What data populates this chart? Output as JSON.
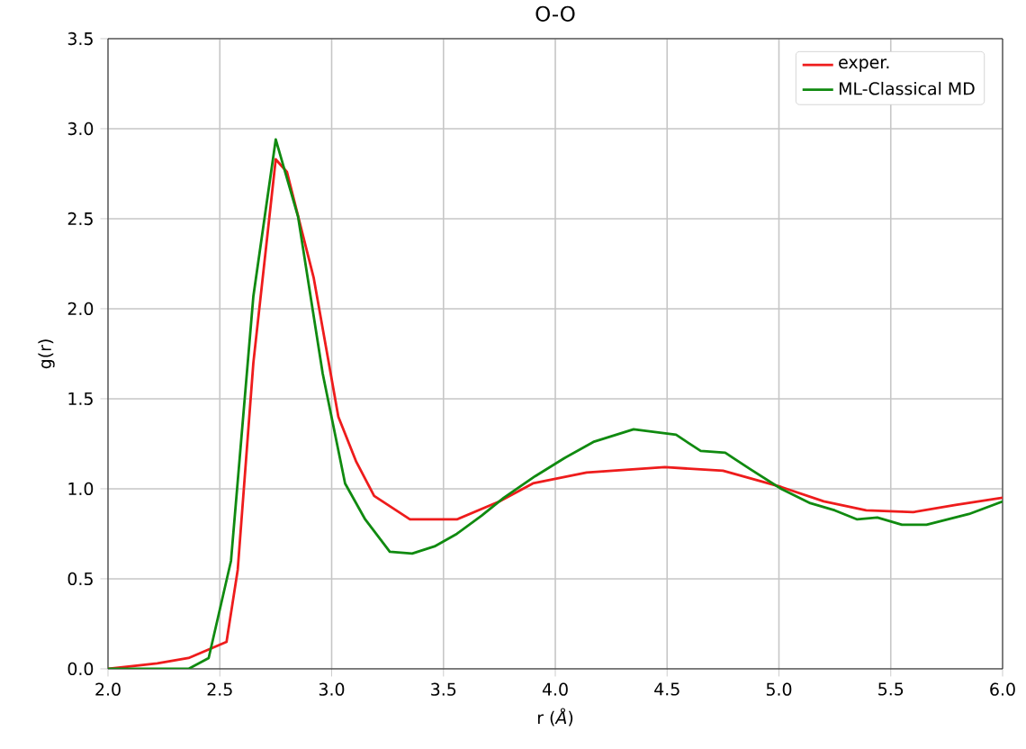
{
  "chart_data": {
    "type": "line",
    "title": "O-O",
    "xlabel": "r (*Å*)",
    "ylabel": "g(r)",
    "xlim": [
      2.0,
      6.0
    ],
    "ylim": [
      0.0,
      3.5
    ],
    "xticks": [
      {
        "value": 2.0,
        "label": "2.0"
      },
      {
        "value": 2.5,
        "label": "2.5"
      },
      {
        "value": 3.0,
        "label": "3.0"
      },
      {
        "value": 3.5,
        "label": "3.5"
      },
      {
        "value": 4.0,
        "label": "4.0"
      },
      {
        "value": 4.5,
        "label": "4.5"
      },
      {
        "value": 5.0,
        "label": "5.0"
      },
      {
        "value": 5.5,
        "label": "5.5"
      },
      {
        "value": 6.0,
        "label": "6.0"
      }
    ],
    "yticks": [
      {
        "value": 0.0,
        "label": "0.0"
      },
      {
        "value": 0.5,
        "label": "0.5"
      },
      {
        "value": 1.0,
        "label": "1.0"
      },
      {
        "value": 1.5,
        "label": "1.5"
      },
      {
        "value": 2.0,
        "label": "2.0"
      },
      {
        "value": 2.5,
        "label": "2.5"
      },
      {
        "value": 3.0,
        "label": "3.0"
      },
      {
        "value": 3.5,
        "label": "3.5"
      }
    ],
    "grid": true,
    "legend": "top right",
    "series": [
      {
        "name": "exper.",
        "color": "#ee1c1c",
        "x": [
          2.0,
          2.22,
          2.36,
          2.53,
          2.58,
          2.65,
          2.75,
          2.8,
          2.92,
          3.03,
          3.11,
          3.19,
          3.35,
          3.56,
          3.75,
          3.9,
          4.14,
          4.49,
          4.75,
          5.01,
          5.2,
          5.39,
          5.6,
          5.79,
          6.0
        ],
        "values": [
          0.0,
          0.03,
          0.06,
          0.15,
          0.55,
          1.7,
          2.83,
          2.76,
          2.17,
          1.4,
          1.15,
          0.96,
          0.83,
          0.83,
          0.93,
          1.03,
          1.09,
          1.12,
          1.1,
          1.01,
          0.93,
          0.88,
          0.87,
          0.91,
          0.95
        ]
      },
      {
        "name": "ML-Classical MD",
        "color": "#108a10",
        "x": [
          2.0,
          2.36,
          2.45,
          2.55,
          2.65,
          2.75,
          2.85,
          2.96,
          3.06,
          3.15,
          3.26,
          3.36,
          3.46,
          3.56,
          3.67,
          3.77,
          3.91,
          4.04,
          4.17,
          4.35,
          4.54,
          4.65,
          4.76,
          4.87,
          5.01,
          5.14,
          5.25,
          5.35,
          5.44,
          5.55,
          5.66,
          5.85,
          6.0
        ],
        "values": [
          0.0,
          0.0,
          0.06,
          0.6,
          2.07,
          2.94,
          2.51,
          1.64,
          1.03,
          0.83,
          0.65,
          0.64,
          0.68,
          0.75,
          0.85,
          0.95,
          1.07,
          1.17,
          1.26,
          1.33,
          1.3,
          1.21,
          1.2,
          1.11,
          1.0,
          0.92,
          0.88,
          0.83,
          0.84,
          0.8,
          0.8,
          0.86,
          0.93
        ]
      }
    ]
  }
}
